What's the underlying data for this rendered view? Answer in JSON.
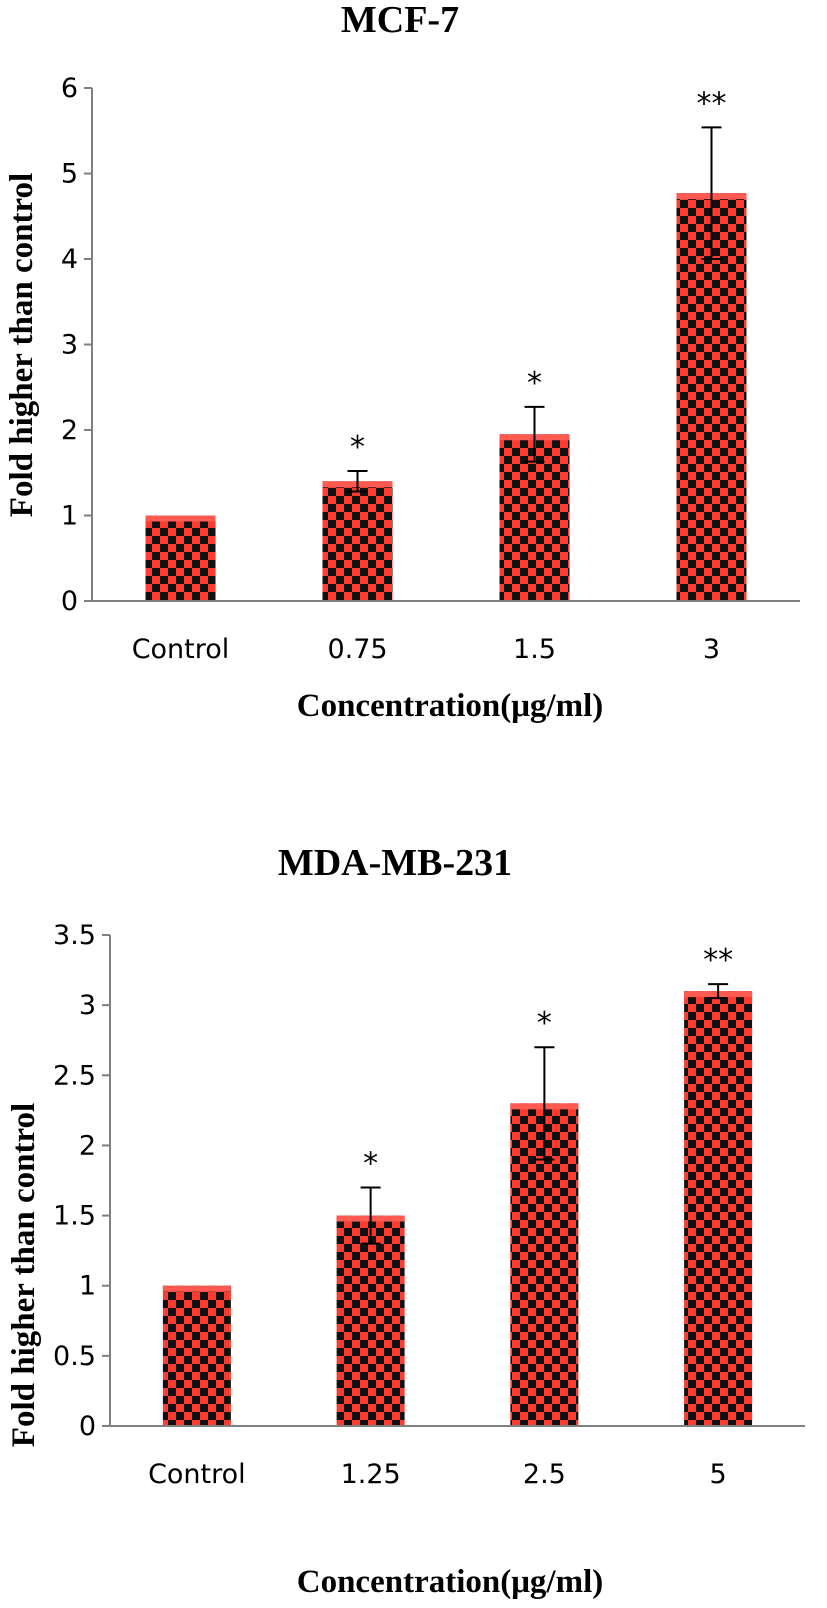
{
  "chart_data": [
    {
      "type": "bar",
      "title": "MCF-7",
      "xlabel": "Concentration(μg/ml)",
      "ylabel": "Fold higher than control",
      "categories": [
        "Control",
        "0.75",
        "1.5",
        "3"
      ],
      "values": [
        1.0,
        1.4,
        1.95,
        4.77
      ],
      "error": [
        0,
        0.12,
        0.32,
        0.77
      ],
      "significance": [
        "",
        "*",
        "*",
        "**"
      ],
      "ylim": [
        0,
        6
      ],
      "yticks": [
        "0",
        "1",
        "2",
        "3",
        "4",
        "5",
        "6"
      ],
      "grid": false,
      "legend": "none",
      "bar_color": "#ff3b2f",
      "pattern_color": "#111111"
    },
    {
      "type": "bar",
      "title": "MDA-MB-231",
      "xlabel": "Concentration(μg/ml)",
      "ylabel": "Fold higher than control",
      "categories": [
        "Control",
        "1.25",
        "2.5",
        "5"
      ],
      "values": [
        1.0,
        1.5,
        2.3,
        3.1
      ],
      "error": [
        0,
        0.2,
        0.4,
        0.05
      ],
      "significance": [
        "",
        "*",
        "*",
        "**"
      ],
      "ylim": [
        0,
        3.5
      ],
      "yticks": [
        "0",
        "0.5",
        "1",
        "1.5",
        "2",
        "2.5",
        "3",
        "3.5"
      ],
      "grid": false,
      "legend": "none",
      "bar_color": "#ff3b2f",
      "pattern_color": "#111111"
    }
  ]
}
